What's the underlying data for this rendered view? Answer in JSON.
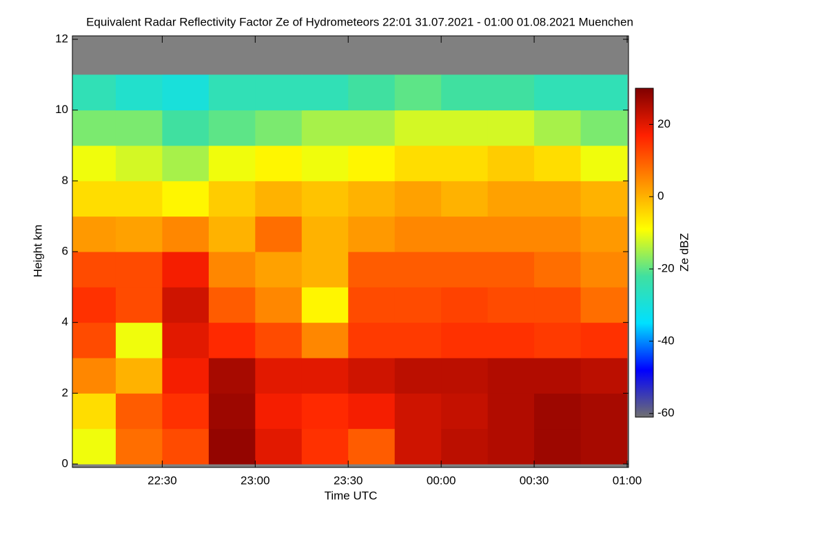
{
  "chart_data": {
    "type": "heatmap",
    "title": "Equivalent Radar Reflectivity Factor Ze of Hydrometeors   22:01 31.07.2021 - 01:00 01.08.2021 Muenchen",
    "x_label": "Time UTC",
    "y_label": "Height km",
    "colorbar_label": "Ze dBZ",
    "xlim": [
      22.0167,
      25.0
    ],
    "xticks": [
      {
        "value": 22.5,
        "label": "22:30"
      },
      {
        "value": 23,
        "label": "23:00"
      },
      {
        "value": 23.5,
        "label": "23:30"
      },
      {
        "value": 24,
        "label": "00:00"
      },
      {
        "value": 24.5,
        "label": "00:30"
      },
      {
        "value": 25,
        "label": "01:00"
      }
    ],
    "ylim": [
      0,
      12
    ],
    "yticks": [
      0,
      2,
      4,
      6,
      8,
      10,
      12
    ],
    "clim": [
      -61,
      30
    ],
    "cticks": [
      -60,
      -40,
      -20,
      0,
      20
    ],
    "colors": [
      "#707070",
      "#0000ff",
      "#00e0ff",
      "#40e0a0",
      "#ffff00",
      "#ff9000",
      "#ff2000",
      "#800000"
    ],
    "no_data_color": "#808080",
    "x_bins": [
      22.0167,
      22.25,
      22.5,
      22.75,
      23,
      23.25,
      23.5,
      23.75,
      24,
      24.25,
      24.5,
      24.75,
      25.0
    ],
    "y_bins": [
      0,
      1,
      2,
      3,
      4,
      5,
      6,
      7,
      8,
      9,
      10,
      11,
      12
    ],
    "z": [
      [
        -10,
        8,
        12,
        28,
        20,
        15,
        10,
        22,
        24,
        25,
        27,
        26
      ],
      [
        -5,
        10,
        15,
        27,
        18,
        16,
        18,
        22,
        23,
        25,
        27,
        26
      ],
      [
        5,
        0,
        18,
        26,
        20,
        20,
        22,
        24,
        24,
        25,
        25,
        24
      ],
      [
        12,
        -10,
        20,
        16,
        12,
        5,
        14,
        14,
        15,
        15,
        14,
        15
      ],
      [
        15,
        12,
        22,
        10,
        5,
        -8,
        12,
        12,
        13,
        12,
        12,
        8
      ],
      [
        12,
        12,
        18,
        5,
        2,
        0,
        10,
        10,
        10,
        10,
        8,
        5
      ],
      [
        3,
        2,
        5,
        0,
        8,
        0,
        3,
        5,
        5,
        5,
        5,
        3
      ],
      [
        -5,
        -5,
        -8,
        -3,
        0,
        -2,
        0,
        2,
        0,
        2,
        2,
        0
      ],
      [
        -10,
        -12,
        -15,
        -10,
        -8,
        -10,
        -8,
        -5,
        -5,
        -3,
        -5,
        -10
      ],
      [
        -18,
        -18,
        -22,
        -20,
        -18,
        -15,
        -15,
        -12,
        -12,
        -12,
        -15,
        -18
      ],
      [
        -25,
        -28,
        -30,
        -25,
        -25,
        -25,
        -22,
        -20,
        -22,
        -22,
        -25,
        -25
      ],
      [
        null,
        null,
        null,
        null,
        null,
        null,
        null,
        null,
        null,
        null,
        null,
        null
      ]
    ]
  }
}
